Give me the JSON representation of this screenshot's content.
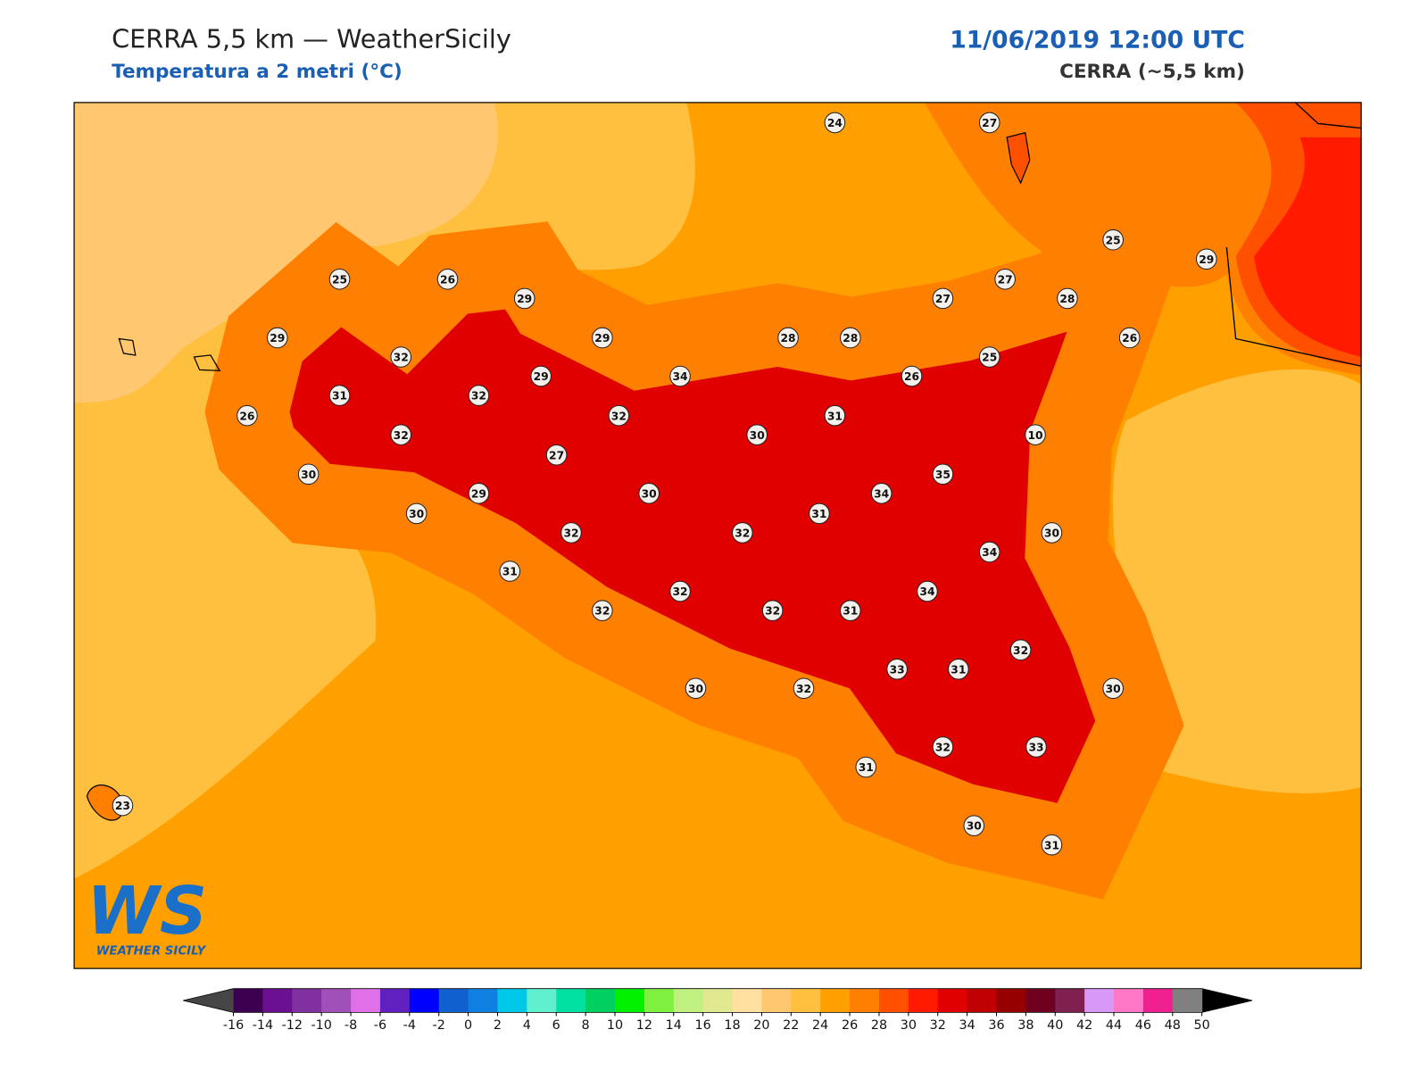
{
  "header": {
    "title": "CERRA 5,5 km — WeatherSicily",
    "subtitle": "Temperatura a 2 metri (°C)",
    "date": "11/06/2019 12:00 UTC",
    "model": "CERRA (~5,5 km)"
  },
  "stations": [
    24,
    27,
    25,
    29,
    25,
    26,
    29,
    27,
    27,
    28,
    29,
    29,
    28,
    28,
    26,
    32,
    25,
    34,
    29,
    26,
    31,
    32,
    26,
    32,
    31,
    32,
    30,
    10,
    27,
    35,
    30,
    34,
    29,
    30,
    31,
    30,
    30,
    32,
    32,
    34,
    31,
    34,
    32,
    32,
    32,
    31,
    32,
    33,
    31,
    30,
    30,
    32,
    32,
    33,
    31,
    30,
    31,
    23
  ],
  "colorbar": {
    "ticks": [
      -16,
      -14,
      -12,
      -10,
      -8,
      -6,
      -4,
      -2,
      0,
      2,
      4,
      6,
      8,
      10,
      12,
      14,
      16,
      18,
      20,
      22,
      24,
      26,
      28,
      30,
      32,
      34,
      36,
      38,
      40,
      42,
      44,
      46,
      48,
      50
    ],
    "colors": [
      "#3d0050",
      "#6a1090",
      "#8030a0",
      "#a050b8",
      "#e070e8",
      "#6020c0",
      "#0000ff",
      "#1060d0",
      "#1080e0",
      "#00c8e8",
      "#60f0d0",
      "#00e0a0",
      "#00d060",
      "#00f000",
      "#80f040",
      "#c0f080",
      "#e0e890",
      "#ffe0a0",
      "#ffc870",
      "#ffc040",
      "#ffa000",
      "#ff8000",
      "#ff5000",
      "#ff1a00",
      "#e00000",
      "#c00000",
      "#960000",
      "#700020",
      "#802050",
      "#d898f8",
      "#ff78c8",
      "#f02090",
      "#808080",
      "#404040"
    ],
    "extend_colors": [
      "#454545",
      "#000000"
    ]
  },
  "logo": {
    "mark": "WS",
    "name": "WEATHER SICILY"
  }
}
